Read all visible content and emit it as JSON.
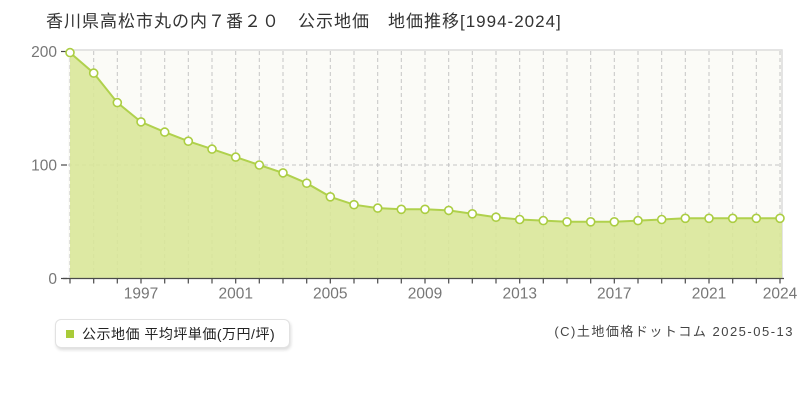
{
  "title": "香川県高松市丸の内７番２０　公示地価　地価推移[1994-2024]",
  "legend": {
    "label": "公示地価 平均坪単価(万円/坪)",
    "marker_color": "#a9cb39"
  },
  "copyright": "(C)土地価格ドットコム 2025-05-13",
  "chart_data": {
    "type": "area",
    "title": "香川県高松市丸の内７番２０ 公示地価 地価推移[1994-2024]",
    "x": [
      1994,
      1995,
      1996,
      1997,
      1998,
      1999,
      2000,
      2001,
      2002,
      2003,
      2004,
      2005,
      2006,
      2007,
      2008,
      2009,
      2010,
      2011,
      2012,
      2013,
      2014,
      2015,
      2016,
      2017,
      2018,
      2019,
      2020,
      2021,
      2022,
      2023,
      2024
    ],
    "series": [
      {
        "name": "公示地価 平均坪単価(万円/坪)",
        "values": [
          199,
          181,
          155,
          138,
          129,
          121,
          114,
          107,
          100,
          93,
          84,
          72,
          65,
          62,
          61,
          61,
          60,
          57,
          54,
          52,
          51,
          50,
          50,
          50,
          51,
          52,
          53,
          53,
          53,
          53,
          53
        ]
      }
    ],
    "xlabel": "",
    "ylabel": "平均坪単価(万円/坪)",
    "ylim": [
      0,
      200
    ],
    "yticks": [
      0,
      100,
      200
    ],
    "xticks": [
      1997,
      2001,
      2005,
      2009,
      2013,
      2017,
      2021,
      2024
    ],
    "grid": true,
    "legend_position": "bottom-left",
    "colors": {
      "area_fill": "#d8e697",
      "line": "#b0d14d",
      "marker_fill": "#ffffff",
      "marker_stroke": "#abcd42",
      "grid": "#c5c5c5",
      "axis": "#4a4a4a",
      "tick_label": "#777777",
      "plot_bg": "#fbfbf7",
      "plot_border": "#dcdcdc"
    }
  }
}
